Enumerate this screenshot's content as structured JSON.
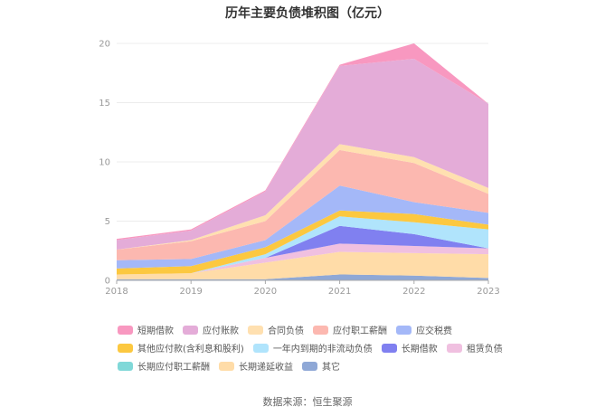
{
  "chart_data": {
    "type": "area",
    "stacked": true,
    "title": "历年主要负债堆积图（亿元）",
    "source": "数据来源：恒生聚源",
    "categories": [
      "2018",
      "2019",
      "2020",
      "2021",
      "2022",
      "2023"
    ],
    "ylim": [
      0,
      20
    ],
    "yticks": [
      0,
      5,
      10,
      15,
      20
    ],
    "xlabel": "",
    "ylabel": "",
    "grid": true,
    "legend_position": "bottom",
    "series": [
      {
        "name": "其它",
        "color": "#8fa8d6",
        "values": [
          0.1,
          0.1,
          0.1,
          0.5,
          0.4,
          0.2
        ]
      },
      {
        "name": "长期递延收益",
        "color": "#ffdca8",
        "values": [
          0.4,
          0.5,
          1.4,
          1.9,
          1.9,
          2.0
        ]
      },
      {
        "name": "长期应付职工薪酬",
        "color": "#80d8d8",
        "values": [
          0.0,
          0.0,
          0.0,
          0.0,
          0.0,
          0.0
        ]
      },
      {
        "name": "租赁负债",
        "color": "#f0c0e0",
        "values": [
          0.0,
          0.0,
          0.4,
          0.7,
          0.6,
          0.5
        ]
      },
      {
        "name": "长期借款",
        "color": "#8080f0",
        "values": [
          0.0,
          0.0,
          0.0,
          1.5,
          1.0,
          0.0
        ]
      },
      {
        "name": "一年内到期的非流动负债",
        "color": "#b0e4fc",
        "values": [
          0.0,
          0.0,
          0.3,
          0.8,
          1.0,
          1.6
        ]
      },
      {
        "name": "其他应付款(含利息和股利)",
        "color": "#fcc840",
        "values": [
          0.5,
          0.6,
          0.6,
          0.5,
          0.7,
          0.4
        ]
      },
      {
        "name": "应交税费",
        "color": "#a4b8f8",
        "values": [
          0.7,
          0.6,
          0.6,
          2.1,
          1.0,
          1.0
        ]
      },
      {
        "name": "应付职工薪酬",
        "color": "#fcb8b0",
        "values": [
          0.9,
          1.5,
          1.6,
          3.0,
          3.3,
          1.6
        ]
      },
      {
        "name": "合同负债",
        "color": "#ffe0b0",
        "values": [
          0.0,
          0.1,
          0.5,
          0.5,
          0.5,
          0.5
        ]
      },
      {
        "name": "应付账款",
        "color": "#e4acd8",
        "values": [
          0.8,
          0.8,
          2.0,
          6.6,
          8.3,
          7.1
        ]
      },
      {
        "name": "短期借款",
        "color": "#f898c0",
        "values": [
          0.1,
          0.1,
          0.1,
          0.1,
          1.3,
          0.0
        ]
      }
    ],
    "legend_order": [
      "短期借款",
      "应付账款",
      "合同负债",
      "应付职工薪酬",
      "应交税费",
      "其他应付款(含利息和股利)",
      "一年内到期的非流动负债",
      "长期借款",
      "租赁负债",
      "长期应付职工薪酬",
      "长期递延收益",
      "其它"
    ]
  }
}
